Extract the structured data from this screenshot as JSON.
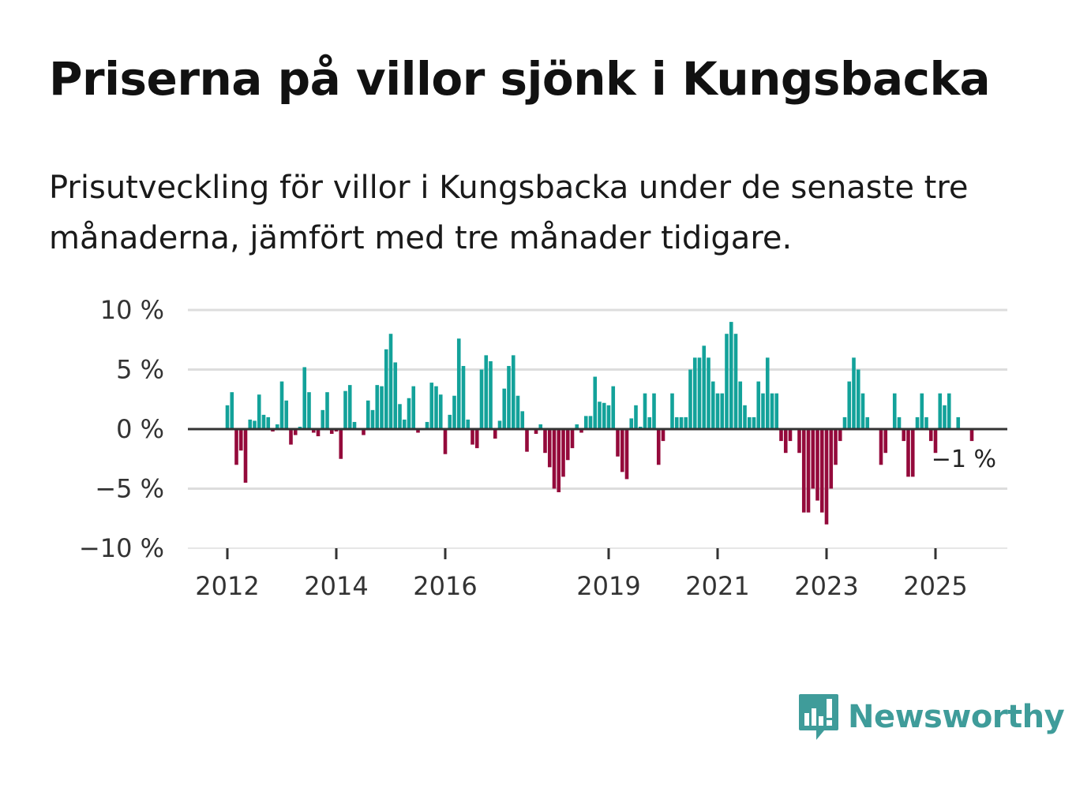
{
  "title": "Priserna på villor sjönk i Kungsbacka",
  "subtitle": "Prisutveckling för villor i Kungsbacka under de senaste tre månaderna, jämfört med tre månader tidigare.",
  "brand": {
    "name": "Newsworthy"
  },
  "colors": {
    "positive": "#13a29a",
    "negative": "#940a3b",
    "grid": "#dddddd",
    "zero_line": "#333333",
    "brand": "#3f9c9a"
  },
  "chart_data": {
    "type": "bar",
    "title": "Priserna på villor sjönk i Kungsbacka",
    "xlabel": "",
    "ylabel": "",
    "ylim": [
      -10,
      10
    ],
    "start": {
      "year": 2012,
      "month": 1
    },
    "y_ticks": [
      {
        "value": 10,
        "label": "10 %"
      },
      {
        "value": 5,
        "label": "5 %"
      },
      {
        "value": 0,
        "label": "0 %"
      },
      {
        "value": -5,
        "label": "−5 %"
      },
      {
        "value": -10,
        "label": "−10 %"
      }
    ],
    "x_ticks": [
      {
        "index": 0,
        "label": "2012"
      },
      {
        "index": 24,
        "label": "2014"
      },
      {
        "index": 48,
        "label": "2016"
      },
      {
        "index": 84,
        "label": "2019"
      },
      {
        "index": 108,
        "label": "2021"
      },
      {
        "index": 132,
        "label": "2023"
      },
      {
        "index": 156,
        "label": "2025"
      }
    ],
    "last_value_label": "−1 %",
    "values": [
      2.0,
      3.1,
      -3.0,
      -1.8,
      -4.5,
      0.8,
      0.7,
      2.9,
      1.2,
      1.0,
      -0.2,
      0.4,
      4.0,
      2.4,
      -1.3,
      -0.5,
      0.2,
      5.2,
      3.1,
      -0.3,
      -0.6,
      1.6,
      3.1,
      -0.4,
      -0.2,
      -2.5,
      3.2,
      3.7,
      0.6,
      -0.1,
      -0.5,
      2.4,
      1.6,
      3.7,
      3.6,
      6.7,
      8.0,
      5.6,
      2.1,
      0.8,
      2.6,
      3.6,
      -0.3,
      -0.1,
      0.6,
      3.9,
      3.6,
      2.9,
      -2.1,
      1.2,
      2.8,
      7.6,
      5.3,
      0.8,
      -1.3,
      -1.6,
      5.0,
      6.2,
      5.7,
      -0.8,
      0.7,
      3.4,
      5.3,
      6.2,
      2.8,
      1.5,
      -1.9,
      -0.1,
      -0.4,
      0.4,
      -2.0,
      -3.2,
      -5.0,
      -5.3,
      -4.0,
      -2.6,
      -1.6,
      0.4,
      -0.3,
      1.1,
      1.1,
      4.4,
      2.3,
      2.2,
      2.0,
      3.6,
      -2.3,
      -3.6,
      -4.2,
      0.9,
      2.0,
      0.2,
      3.0,
      1.0,
      3.0,
      -3.0,
      -1.0,
      0.1,
      3.0,
      1.0,
      1.0,
      1.0,
      5.0,
      6.0,
      6.0,
      7.0,
      6.0,
      4.0,
      3.0,
      3.0,
      8.0,
      9.0,
      8.0,
      4.0,
      2.0,
      1.0,
      1.0,
      4.0,
      3.0,
      6.0,
      3.0,
      3.0,
      -1.0,
      -2.0,
      -1.0,
      0.0,
      -2.0,
      -7.0,
      -7.0,
      -5.0,
      -6.0,
      -7.0,
      -8.0,
      -5.0,
      -3.0,
      -1.0,
      1.0,
      4.0,
      6.0,
      5.0,
      3.0,
      1.0,
      0.0,
      0.0,
      -3.0,
      -2.0,
      0.0,
      3.0,
      1.0,
      -1.0,
      -4.0,
      -4.0,
      1.0,
      3.0,
      1.0,
      -1.0,
      -2.0,
      3.0,
      2.0,
      3.0,
      0.0,
      1.0,
      0.0,
      0.0,
      -1.0
    ]
  }
}
